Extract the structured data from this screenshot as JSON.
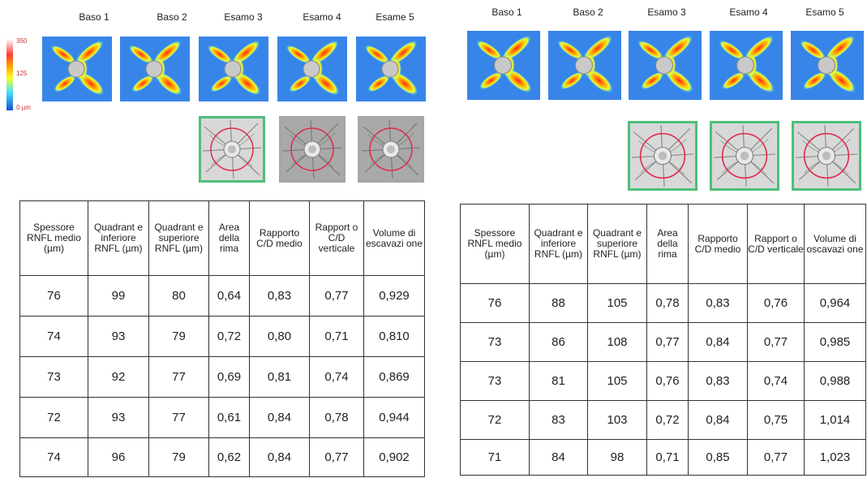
{
  "left": {
    "headers": [
      "Baso 1",
      "Baso 2",
      "Esamo 3",
      "Esamo 4",
      "Esame 5"
    ],
    "scale": {
      "top": "350",
      "mid": "125",
      "bottom": "0 µm"
    },
    "columns": [
      "Spessore RNFL medio (µm)",
      "Quadrant e inferiore RNFL (µm)",
      "Quadrant e superiore RNFL (µm)",
      "Area della rima",
      "Rapporto C/D medio",
      "Rapport o C/D verticale",
      "Volume di escavazi one"
    ],
    "rows": [
      [
        "76",
        "99",
        "80",
        "0,64",
        "0,83",
        "0,77",
        "0,929"
      ],
      [
        "74",
        "93",
        "79",
        "0,72",
        "0,80",
        "0,71",
        "0,810"
      ],
      [
        "73",
        "92",
        "77",
        "0,69",
        "0,81",
        "0,74",
        "0,869"
      ],
      [
        "72",
        "93",
        "77",
        "0,61",
        "0,84",
        "0,78",
        "0,944"
      ],
      [
        "74",
        "96",
        "79",
        "0,62",
        "0,84",
        "0,77",
        "0,902"
      ]
    ]
  },
  "right": {
    "headers": [
      "Baso 1",
      "Baso 2",
      "Esamo 3",
      "Esamo 4",
      "Esamo 5"
    ],
    "columns": [
      "Spessore RNFL medio (µm)",
      "Quadrant e inferiore RNFL (µm)",
      "Quadrant e superiore RNFL (µm)",
      "Area della rima",
      "Rapporto C/D medio",
      "Rapport o C/D verticale",
      "Volume di oscavazi one"
    ],
    "rows": [
      [
        "76",
        "88",
        "105",
        "0,78",
        "0,83",
        "0,76",
        "0,964"
      ],
      [
        "73",
        "86",
        "108",
        "0,77",
        "0,84",
        "0,77",
        "0,985"
      ],
      [
        "73",
        "81",
        "105",
        "0,76",
        "0,83",
        "0,74",
        "0,988"
      ],
      [
        "72",
        "83",
        "103",
        "0,72",
        "0,84",
        "0,75",
        "1,014"
      ],
      [
        "71",
        "84",
        "98",
        "0,71",
        "0,85",
        "0,77",
        "1,023"
      ]
    ]
  }
}
